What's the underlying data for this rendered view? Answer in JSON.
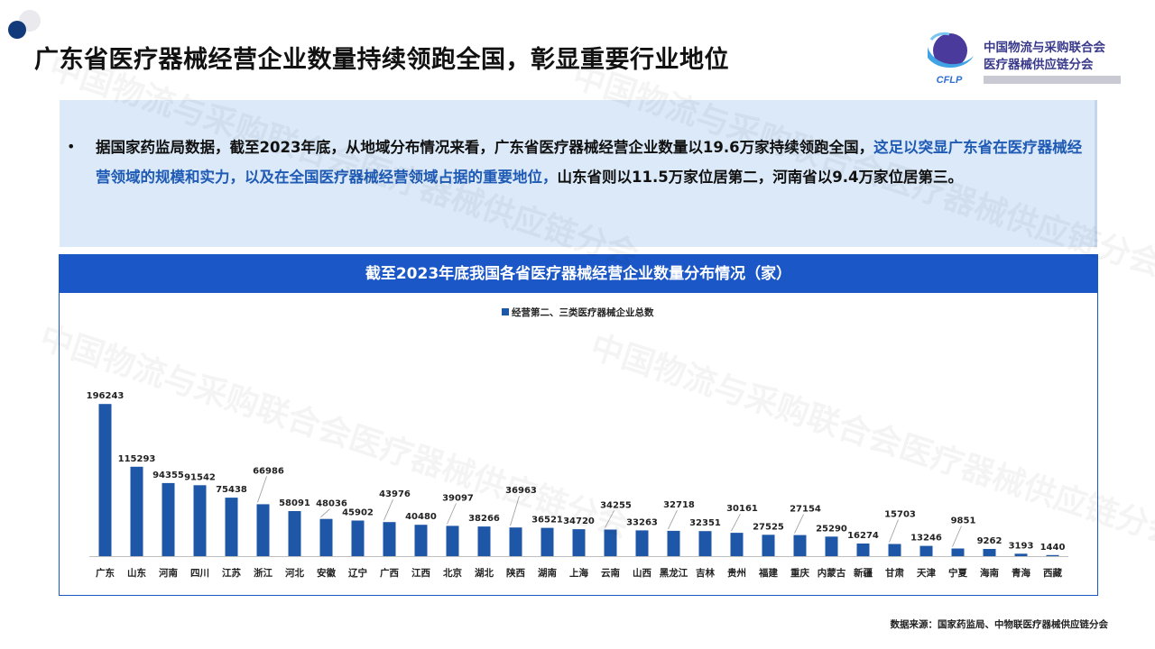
{
  "page": {
    "title": "广东省医疗器械经营企业数量持续领跑全国，彰显重要行业地位",
    "logo_line1": "中国物流与采购联合会",
    "logo_line2": "医疗器械供应链分会",
    "logo_abbr": "CFLP",
    "bullet_marker": "•",
    "bullet_part1": "据国家药监局数据，截至2023年底，从地域分布情况来看，广东省医疗器械经营企业数量以19.6万家持续领跑全国，",
    "bullet_highlight": "这足以突显广东省在医疗器械经营领域的规模和实力，以及在全国医疗器械经营领域占据的重要地位，",
    "bullet_part2": "山东省则以11.5万家位居第二，河南省以9.4万家位居第三。",
    "footnote": "数据来源：国家药监局、中物联医疗器械供应链分会",
    "watermark": "中国物流与采购联合会医疗器械供应链分会"
  },
  "colors": {
    "header_bg": "#1b57c6",
    "bar": "#1f57a8",
    "highlight_text": "#1f5bb5",
    "bullet_bg": "#dbe9f8"
  },
  "chart_data": {
    "type": "bar",
    "title": "截至2023年底我国各省医疗器械经营企业数量分布情况（家）",
    "series": [
      {
        "name": "经营第二、三类医疗器械企业总数",
        "values": [
          196243,
          115293,
          94355,
          91542,
          75438,
          66986,
          58091,
          48036,
          45902,
          43976,
          40480,
          39097,
          38266,
          36963,
          36521,
          34720,
          34255,
          33263,
          32718,
          32351,
          30161,
          27525,
          27154,
          25290,
          16274,
          15703,
          13246,
          9851,
          9262,
          3193,
          1440
        ]
      }
    ],
    "categories": [
      "广东",
      "山东",
      "河南",
      "四川",
      "江苏",
      "浙江",
      "河北",
      "安徽",
      "辽宁",
      "广西",
      "江西",
      "北京",
      "湖北",
      "陕西",
      "湖南",
      "上海",
      "云南",
      "山西",
      "黑龙江",
      "吉林",
      "贵州",
      "福建",
      "重庆",
      "内蒙古",
      "新疆",
      "甘肃",
      "天津",
      "宁夏",
      "海南",
      "青海",
      "西藏"
    ],
    "legend_position": "top-center",
    "grid": false,
    "ylim": [
      0,
      200000
    ]
  }
}
